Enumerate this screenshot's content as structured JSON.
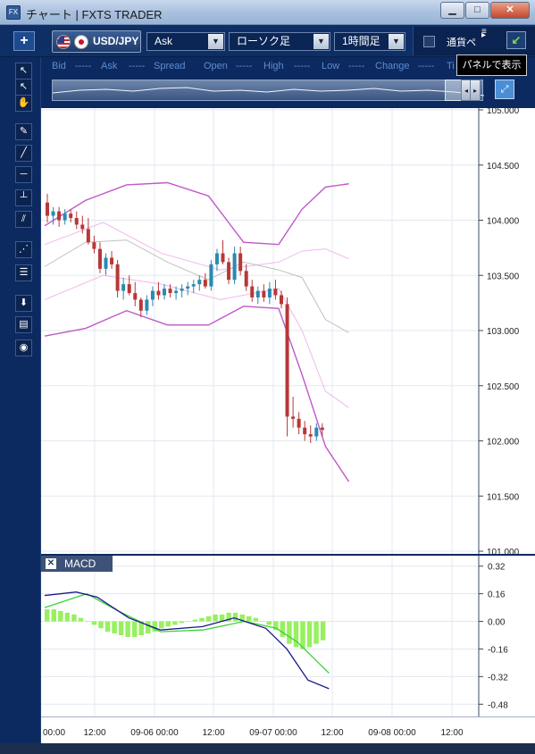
{
  "window": {
    "title": "チャート | FXTS TRADER",
    "app_icon": "FX",
    "minimize": "▁",
    "maximize": "□",
    "close": "✕"
  },
  "toolbar": {
    "add_button": "+",
    "symbol": "USD/JPY",
    "price_type": "Ask",
    "chart_type": "ローソク足",
    "timeframe": "1時間足",
    "currency_panel_label": "通貨ペ",
    "dropdown_arrow": "▼",
    "tooltip": "パネルで表示"
  },
  "info": {
    "bid_label": "Bid",
    "bid_value": "-----",
    "ask_label": "Ask",
    "ask_value": "-----",
    "spread_label": "Spread",
    "open_label": "Open",
    "open_value": "-----",
    "high_label": "High",
    "high_value": "-----",
    "low_label": "Low",
    "low_value": "-----",
    "change_label": "Change",
    "change_value": "-----",
    "time_label": "Ti"
  },
  "macd_label": "MACD",
  "macd_close": "✕",
  "chart_data": {
    "type": "candlestick",
    "price_axis": [
      "105.000",
      "104.500",
      "104.000",
      "103.500",
      "103.000",
      "102.500",
      "102.000",
      "101.500",
      "101.000"
    ],
    "price_range": [
      101.0,
      105.0
    ],
    "macd_axis": [
      "0.32",
      "0.16",
      "0.00",
      "-0.16",
      "-0.32",
      "-0.48"
    ],
    "macd_range": [
      -0.52,
      0.36
    ],
    "time_axis": [
      "00:00",
      "12:00",
      "09-06 00:00",
      "12:00",
      "09-07 00:00",
      "12:00",
      "09-08 00:00",
      "12:00"
    ],
    "candles": [
      [
        104.16,
        104.24,
        103.98,
        104.04
      ],
      [
        104.04,
        104.12,
        103.96,
        104.08
      ],
      [
        104.08,
        104.12,
        103.94,
        104.0
      ],
      [
        104.0,
        104.1,
        103.96,
        104.06
      ],
      [
        104.06,
        104.1,
        103.98,
        104.02
      ],
      [
        104.02,
        104.08,
        103.92,
        103.96
      ],
      [
        103.96,
        104.04,
        103.88,
        103.92
      ],
      [
        103.92,
        104.02,
        103.78,
        103.8
      ],
      [
        103.8,
        103.86,
        103.7,
        103.74
      ],
      [
        103.74,
        103.8,
        103.52,
        103.56
      ],
      [
        103.56,
        103.7,
        103.5,
        103.66
      ],
      [
        103.66,
        103.72,
        103.56,
        103.6
      ],
      [
        103.6,
        103.64,
        103.3,
        103.36
      ],
      [
        103.36,
        103.48,
        103.28,
        103.42
      ],
      [
        103.42,
        103.5,
        103.32,
        103.34
      ],
      [
        103.34,
        103.44,
        103.22,
        103.28
      ],
      [
        103.28,
        103.3,
        103.12,
        103.18
      ],
      [
        103.18,
        103.32,
        103.14,
        103.28
      ],
      [
        103.28,
        103.4,
        103.22,
        103.36
      ],
      [
        103.36,
        103.44,
        103.28,
        103.32
      ],
      [
        103.32,
        103.42,
        103.28,
        103.38
      ],
      [
        103.38,
        103.42,
        103.3,
        103.34
      ],
      [
        103.34,
        103.4,
        103.28,
        103.36
      ],
      [
        103.36,
        103.42,
        103.3,
        103.38
      ],
      [
        103.38,
        103.44,
        103.32,
        103.4
      ],
      [
        103.4,
        103.46,
        103.34,
        103.42
      ],
      [
        103.42,
        103.5,
        103.36,
        103.46
      ],
      [
        103.46,
        103.52,
        103.38,
        103.4
      ],
      [
        103.4,
        103.64,
        103.36,
        103.6
      ],
      [
        103.6,
        103.74,
        103.54,
        103.7
      ],
      [
        103.7,
        103.82,
        103.6,
        103.62
      ],
      [
        103.62,
        103.66,
        103.42,
        103.46
      ],
      [
        103.46,
        103.76,
        103.42,
        103.7
      ],
      [
        103.7,
        103.76,
        103.5,
        103.54
      ],
      [
        103.54,
        103.6,
        103.36,
        103.4
      ],
      [
        103.4,
        103.46,
        103.26,
        103.3
      ],
      [
        103.3,
        103.4,
        103.24,
        103.36
      ],
      [
        103.36,
        103.42,
        103.26,
        103.3
      ],
      [
        103.3,
        103.44,
        103.24,
        103.38
      ],
      [
        103.38,
        103.46,
        103.28,
        103.32
      ],
      [
        103.32,
        103.36,
        103.2,
        103.24
      ],
      [
        103.24,
        103.3,
        102.04,
        102.22
      ],
      [
        102.22,
        102.4,
        102.12,
        102.2
      ],
      [
        102.2,
        102.26,
        102.06,
        102.12
      ],
      [
        102.12,
        102.18,
        102.0,
        102.06
      ],
      [
        102.06,
        102.14,
        101.98,
        102.04
      ],
      [
        102.04,
        102.16,
        102.0,
        102.12
      ],
      [
        102.12,
        102.16,
        102.04,
        102.1
      ]
    ],
    "bollinger_upper": [
      [
        0,
        103.95
      ],
      [
        7,
        104.18
      ],
      [
        14,
        104.32
      ],
      [
        21,
        104.34
      ],
      [
        28,
        104.22
      ],
      [
        34,
        103.8
      ],
      [
        40,
        103.78
      ],
      [
        44,
        104.1
      ],
      [
        48,
        104.3
      ],
      [
        52,
        104.33
      ]
    ],
    "bollinger_mid": [
      [
        0,
        103.58
      ],
      [
        7,
        103.8
      ],
      [
        14,
        103.82
      ],
      [
        21,
        103.62
      ],
      [
        28,
        103.46
      ],
      [
        34,
        103.62
      ],
      [
        40,
        103.55
      ],
      [
        44,
        103.48
      ],
      [
        48,
        103.1
      ],
      [
        52,
        102.98
      ]
    ],
    "bollinger_lower": [
      [
        0,
        102.95
      ],
      [
        7,
        103.02
      ],
      [
        14,
        103.18
      ],
      [
        21,
        103.05
      ],
      [
        28,
        103.05
      ],
      [
        34,
        103.22
      ],
      [
        40,
        103.2
      ],
      [
        44,
        102.6
      ],
      [
        48,
        101.95
      ],
      [
        52,
        101.63
      ]
    ],
    "bollinger_mid_upper": [
      [
        0,
        103.78
      ],
      [
        10,
        103.98
      ],
      [
        20,
        103.7
      ],
      [
        30,
        103.55
      ],
      [
        40,
        103.62
      ],
      [
        44,
        103.72
      ],
      [
        48,
        103.74
      ],
      [
        52,
        103.65
      ]
    ],
    "bollinger_mid_lower": [
      [
        0,
        103.28
      ],
      [
        10,
        103.5
      ],
      [
        20,
        103.42
      ],
      [
        30,
        103.28
      ],
      [
        40,
        103.38
      ],
      [
        44,
        103.0
      ],
      [
        48,
        102.45
      ],
      [
        52,
        102.3
      ]
    ],
    "macd_line": [
      [
        0,
        0.15
      ],
      [
        6,
        0.17
      ],
      [
        10,
        0.14
      ],
      [
        16,
        0.02
      ],
      [
        22,
        -0.05
      ],
      [
        30,
        -0.03
      ],
      [
        36,
        0.02
      ],
      [
        42,
        -0.04
      ],
      [
        46,
        -0.16
      ],
      [
        50,
        -0.34
      ],
      [
        54,
        -0.39
      ]
    ],
    "signal_line": [
      [
        0,
        0.08
      ],
      [
        8,
        0.16
      ],
      [
        14,
        0.06
      ],
      [
        22,
        -0.06
      ],
      [
        30,
        -0.05
      ],
      [
        38,
        0.0
      ],
      [
        44,
        -0.04
      ],
      [
        48,
        -0.12
      ],
      [
        52,
        -0.24
      ],
      [
        54,
        -0.3
      ]
    ],
    "histogram": [
      0.07,
      0.07,
      0.06,
      0.05,
      0.04,
      0.02,
      0.0,
      -0.02,
      -0.04,
      -0.06,
      -0.07,
      -0.08,
      -0.09,
      -0.09,
      -0.08,
      -0.07,
      -0.06,
      -0.04,
      -0.03,
      -0.02,
      -0.01,
      0.0,
      0.01,
      0.02,
      0.03,
      0.04,
      0.04,
      0.05,
      0.05,
      0.04,
      0.03,
      0.02,
      0.0,
      -0.02,
      -0.05,
      -0.09,
      -0.13,
      -0.15,
      -0.16,
      -0.15,
      -0.13,
      -0.11
    ],
    "colors": {
      "up": "#2a8ab0",
      "down": "#b83737",
      "band": "#c058c8",
      "band_inner": "#f0b8ee",
      "mid": "#c0c0c0",
      "macd": "#1a1a8c",
      "signal": "#3ad23a",
      "hist": "#98f060"
    }
  }
}
